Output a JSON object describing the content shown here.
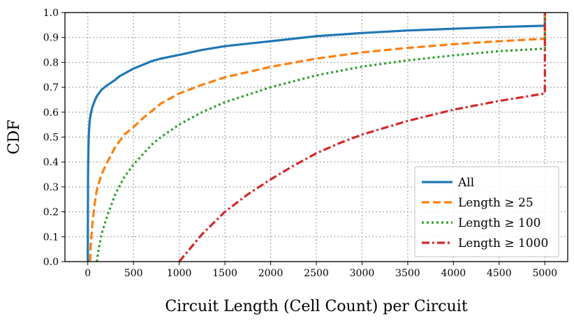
{
  "chart_data": {
    "type": "line",
    "title": "",
    "xlabel": "Circuit Length (Cell Count) per Circuit",
    "ylabel": "CDF",
    "xlim": [
      -250,
      5250
    ],
    "ylim": [
      0,
      1.0
    ],
    "xticks": [
      0,
      500,
      1000,
      1500,
      2000,
      2500,
      3000,
      3500,
      4000,
      4500,
      5000
    ],
    "yticks": [
      0.0,
      0.1,
      0.2,
      0.3,
      0.4,
      0.5,
      0.6,
      0.7,
      0.8,
      0.9,
      1.0
    ],
    "xtick_labels": [
      "0",
      "500",
      "1000",
      "1500",
      "2000",
      "2500",
      "3000",
      "3500",
      "4000",
      "4500",
      "5000"
    ],
    "ytick_labels": [
      "0.0",
      "0.1",
      "0.2",
      "0.3",
      "0.4",
      "0.5",
      "0.6",
      "0.7",
      "0.8",
      "0.9",
      "1.0"
    ],
    "grid": true,
    "legend_position": "bottom-right",
    "series": [
      {
        "name": "All",
        "color": "#1f77b4",
        "style": "solid",
        "x": [
          0,
          1,
          3,
          5,
          10,
          20,
          30,
          50,
          75,
          100,
          150,
          200,
          300,
          350,
          400,
          500,
          600,
          700,
          800,
          1000,
          1250,
          1500,
          2000,
          2500,
          3000,
          3500,
          4000,
          4500,
          5000,
          5000
        ],
        "y": [
          0,
          0.2,
          0.35,
          0.42,
          0.5,
          0.56,
          0.59,
          0.62,
          0.645,
          0.665,
          0.69,
          0.705,
          0.73,
          0.745,
          0.755,
          0.775,
          0.79,
          0.805,
          0.815,
          0.83,
          0.85,
          0.865,
          0.885,
          0.905,
          0.918,
          0.928,
          0.935,
          0.942,
          0.947,
          1.0
        ]
      },
      {
        "name": "Length ≥ 25",
        "color": "#ff7f0e",
        "style": "dashed",
        "x": [
          25,
          30,
          50,
          75,
          100,
          150,
          200,
          300,
          400,
          500,
          600,
          700,
          800,
          1000,
          1250,
          1500,
          2000,
          2500,
          3000,
          3500,
          4000,
          4500,
          5000,
          5000
        ],
        "y": [
          0,
          0.06,
          0.15,
          0.23,
          0.29,
          0.35,
          0.39,
          0.46,
          0.51,
          0.54,
          0.575,
          0.605,
          0.635,
          0.675,
          0.71,
          0.74,
          0.782,
          0.815,
          0.84,
          0.858,
          0.873,
          0.885,
          0.895,
          1.0
        ]
      },
      {
        "name": "Length ≥ 100",
        "color": "#2ca02c",
        "style": "dotted",
        "x": [
          100,
          110,
          130,
          150,
          200,
          300,
          400,
          500,
          600,
          700,
          800,
          1000,
          1250,
          1500,
          2000,
          2500,
          3000,
          3500,
          4000,
          4500,
          5000,
          5000
        ],
        "y": [
          0,
          0.03,
          0.07,
          0.11,
          0.17,
          0.27,
          0.34,
          0.39,
          0.43,
          0.47,
          0.5,
          0.55,
          0.6,
          0.64,
          0.7,
          0.748,
          0.783,
          0.808,
          0.828,
          0.845,
          0.855,
          1.0
        ]
      },
      {
        "name": "Length ≥ 1000",
        "color": "#d62728",
        "style": "dashdot",
        "x": [
          1000,
          1250,
          1500,
          1750,
          2000,
          2250,
          2500,
          2750,
          3000,
          3500,
          4000,
          4500,
          5000,
          5000
        ],
        "y": [
          0,
          0.11,
          0.2,
          0.27,
          0.33,
          0.385,
          0.435,
          0.475,
          0.51,
          0.565,
          0.61,
          0.645,
          0.675,
          1.0
        ]
      }
    ]
  }
}
